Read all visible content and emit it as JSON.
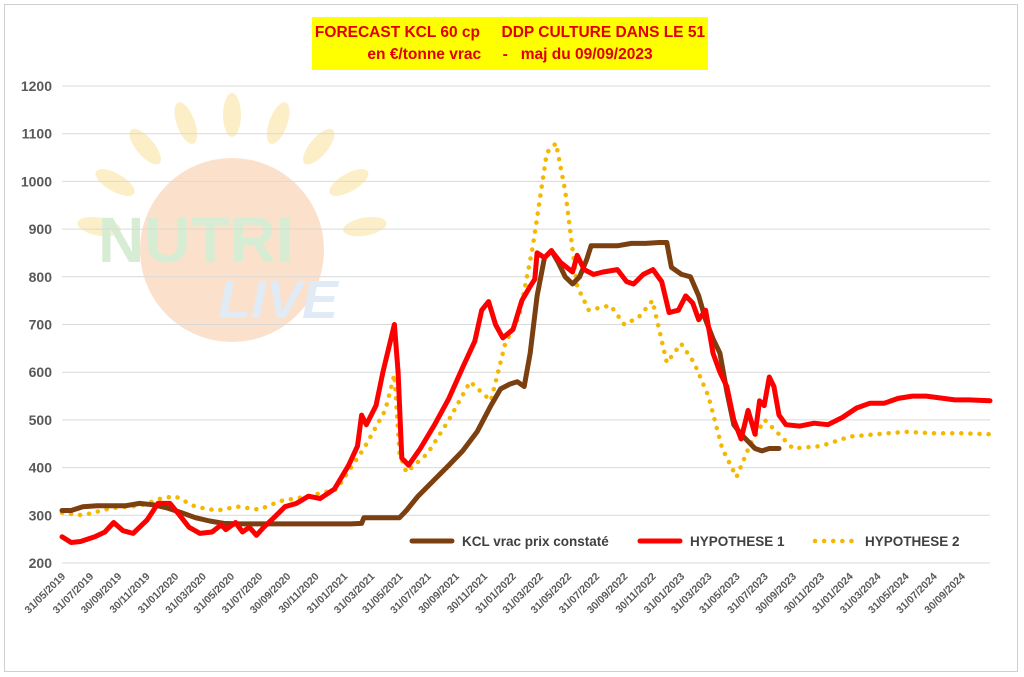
{
  "title": {
    "line1": "FORECAST KCL 60 cp     DDP CULTURE DANS LE 51",
    "line2": "en €/tonne vrac     -   maj du 09/09/2023"
  },
  "watermark": {
    "word1": "NUTRI",
    "word2": "LIVE"
  },
  "colors": {
    "kcl": "#7b3f10",
    "h1": "#ff0000",
    "h2": "#f5b800",
    "grid": "#d9d9d9",
    "title_bg": "#ffff00",
    "title_fg": "#e00000"
  },
  "chart_data": {
    "type": "line",
    "title": "FORECAST KCL 60 cp     DDP CULTURE DANS LE 51 en €/tonne vrac - maj du 09/09/2023",
    "xlabel": "",
    "ylabel": "",
    "ylim": [
      200,
      1200
    ],
    "yticks": [
      200,
      300,
      400,
      500,
      600,
      700,
      800,
      900,
      1000,
      1100,
      1200
    ],
    "xlim": [
      "2019-05-31",
      "2024-11-30"
    ],
    "grid": true,
    "legend_position": "bottom-right",
    "xticks": [
      "31/05/2019",
      "31/07/2019",
      "30/09/2019",
      "30/11/2019",
      "31/01/2020",
      "31/03/2020",
      "31/05/2020",
      "31/07/2020",
      "30/09/2020",
      "30/11/2020",
      "31/01/2021",
      "31/03/2021",
      "31/05/2021",
      "31/07/2021",
      "30/09/2021",
      "30/11/2021",
      "31/01/2022",
      "31/03/2022",
      "31/05/2022",
      "31/07/2022",
      "30/09/2022",
      "30/11/2022",
      "31/01/2023",
      "31/03/2023",
      "31/05/2023",
      "31/07/2023",
      "30/09/2023",
      "30/11/2023",
      "31/01/2024",
      "31/03/2024",
      "31/05/2024",
      "31/07/2024",
      "30/09/2024"
    ],
    "series": [
      {
        "name": "KCL vrac prix constaté",
        "style": "solid-thick",
        "points": [
          [
            "2019-05-31",
            310
          ],
          [
            "2019-06-20",
            310
          ],
          [
            "2019-07-15",
            318
          ],
          [
            "2019-08-15",
            320
          ],
          [
            "2019-10-15",
            320
          ],
          [
            "2019-11-15",
            325
          ],
          [
            "2019-12-15",
            322
          ],
          [
            "2020-01-15",
            315
          ],
          [
            "2020-02-15",
            305
          ],
          [
            "2020-03-15",
            295
          ],
          [
            "2020-04-15",
            288
          ],
          [
            "2020-05-15",
            283
          ],
          [
            "2020-06-15",
            282
          ],
          [
            "2020-08-15",
            282
          ],
          [
            "2020-10-15",
            282
          ],
          [
            "2020-12-15",
            282
          ],
          [
            "2021-02-15",
            282
          ],
          [
            "2021-03-10",
            283
          ],
          [
            "2021-03-15",
            295
          ],
          [
            "2021-05-15",
            295
          ],
          [
            "2021-05-31",
            295
          ],
          [
            "2021-06-15",
            310
          ],
          [
            "2021-07-10",
            340
          ],
          [
            "2021-08-15",
            375
          ],
          [
            "2021-09-15",
            405
          ],
          [
            "2021-10-15",
            435
          ],
          [
            "2021-11-15",
            475
          ],
          [
            "2021-12-15",
            530
          ],
          [
            "2022-01-05",
            565
          ],
          [
            "2022-01-25",
            575
          ],
          [
            "2022-02-10",
            580
          ],
          [
            "2022-02-25",
            570
          ],
          [
            "2022-03-10",
            640
          ],
          [
            "2022-03-25",
            760
          ],
          [
            "2022-04-10",
            840
          ],
          [
            "2022-04-25",
            855
          ],
          [
            "2022-05-10",
            830
          ],
          [
            "2022-05-25",
            800
          ],
          [
            "2022-06-10",
            785
          ],
          [
            "2022-06-25",
            800
          ],
          [
            "2022-07-10",
            835
          ],
          [
            "2022-07-20",
            865
          ],
          [
            "2022-08-15",
            865
          ],
          [
            "2022-09-15",
            865
          ],
          [
            "2022-10-15",
            870
          ],
          [
            "2022-11-15",
            870
          ],
          [
            "2022-12-15",
            872
          ],
          [
            "2022-12-31",
            872
          ],
          [
            "2023-01-10",
            820
          ],
          [
            "2023-02-01",
            805
          ],
          [
            "2023-02-20",
            800
          ],
          [
            "2023-03-10",
            760
          ],
          [
            "2023-03-25",
            710
          ],
          [
            "2023-04-10",
            670
          ],
          [
            "2023-04-25",
            640
          ],
          [
            "2023-05-10",
            560
          ],
          [
            "2023-05-25",
            490
          ],
          [
            "2023-06-10",
            470
          ],
          [
            "2023-06-25",
            455
          ],
          [
            "2023-07-10",
            440
          ],
          [
            "2023-07-25",
            435
          ],
          [
            "2023-08-10",
            440
          ],
          [
            "2023-08-31",
            440
          ]
        ]
      },
      {
        "name": "HYPOTHESE 1",
        "style": "solid-thick",
        "points": [
          [
            "2019-05-31",
            255
          ],
          [
            "2019-06-20",
            243
          ],
          [
            "2019-07-10",
            245
          ],
          [
            "2019-08-10",
            255
          ],
          [
            "2019-09-01",
            265
          ],
          [
            "2019-09-20",
            285
          ],
          [
            "2019-10-10",
            268
          ],
          [
            "2019-11-01",
            262
          ],
          [
            "2019-12-01",
            290
          ],
          [
            "2019-12-25",
            325
          ],
          [
            "2020-01-20",
            325
          ],
          [
            "2020-02-10",
            300
          ],
          [
            "2020-03-01",
            275
          ],
          [
            "2020-03-25",
            262
          ],
          [
            "2020-04-20",
            265
          ],
          [
            "2020-05-10",
            280
          ],
          [
            "2020-05-20",
            270
          ],
          [
            "2020-06-10",
            285
          ],
          [
            "2020-06-25",
            265
          ],
          [
            "2020-07-10",
            275
          ],
          [
            "2020-07-25",
            258
          ],
          [
            "2020-08-10",
            275
          ],
          [
            "2020-09-01",
            295
          ],
          [
            "2020-09-25",
            318
          ],
          [
            "2020-10-20",
            325
          ],
          [
            "2020-11-15",
            340
          ],
          [
            "2020-12-10",
            335
          ],
          [
            "2021-01-10",
            355
          ],
          [
            "2021-02-10",
            405
          ],
          [
            "2021-03-01",
            445
          ],
          [
            "2021-03-10",
            510
          ],
          [
            "2021-03-20",
            490
          ],
          [
            "2021-04-10",
            530
          ],
          [
            "2021-04-25",
            600
          ],
          [
            "2021-05-10",
            660
          ],
          [
            "2021-05-20",
            700
          ],
          [
            "2021-05-28",
            600
          ],
          [
            "2021-06-05",
            420
          ],
          [
            "2021-06-20",
            405
          ],
          [
            "2021-07-15",
            440
          ],
          [
            "2021-08-15",
            490
          ],
          [
            "2021-09-15",
            545
          ],
          [
            "2021-10-15",
            610
          ],
          [
            "2021-11-10",
            665
          ],
          [
            "2021-11-25",
            730
          ],
          [
            "2021-12-10",
            748
          ],
          [
            "2021-12-25",
            700
          ],
          [
            "2022-01-10",
            672
          ],
          [
            "2022-02-01",
            690
          ],
          [
            "2022-02-20",
            750
          ],
          [
            "2022-03-10",
            780
          ],
          [
            "2022-03-20",
            795
          ],
          [
            "2022-03-25",
            850
          ],
          [
            "2022-04-10",
            840
          ],
          [
            "2022-04-25",
            855
          ],
          [
            "2022-05-15",
            830
          ],
          [
            "2022-06-10",
            810
          ],
          [
            "2022-06-20",
            845
          ],
          [
            "2022-07-05",
            815
          ],
          [
            "2022-07-25",
            805
          ],
          [
            "2022-08-15",
            810
          ],
          [
            "2022-09-15",
            815
          ],
          [
            "2022-10-05",
            790
          ],
          [
            "2022-10-20",
            785
          ],
          [
            "2022-11-10",
            805
          ],
          [
            "2022-12-01",
            815
          ],
          [
            "2022-12-20",
            790
          ],
          [
            "2023-01-05",
            725
          ],
          [
            "2023-01-25",
            730
          ],
          [
            "2023-02-10",
            760
          ],
          [
            "2023-02-25",
            745
          ],
          [
            "2023-03-10",
            710
          ],
          [
            "2023-03-25",
            730
          ],
          [
            "2023-04-10",
            640
          ],
          [
            "2023-04-25",
            600
          ],
          [
            "2023-05-10",
            570
          ],
          [
            "2023-05-25",
            500
          ],
          [
            "2023-06-10",
            460
          ],
          [
            "2023-06-25",
            520
          ],
          [
            "2023-07-10",
            470
          ],
          [
            "2023-07-20",
            540
          ],
          [
            "2023-07-30",
            530
          ],
          [
            "2023-08-10",
            590
          ],
          [
            "2023-08-20",
            570
          ],
          [
            "2023-08-31",
            510
          ],
          [
            "2023-09-15",
            490
          ],
          [
            "2023-10-15",
            487
          ],
          [
            "2023-11-15",
            493
          ],
          [
            "2023-12-15",
            490
          ],
          [
            "2024-01-15",
            505
          ],
          [
            "2024-02-15",
            525
          ],
          [
            "2024-03-15",
            535
          ],
          [
            "2024-04-15",
            535
          ],
          [
            "2024-05-15",
            545
          ],
          [
            "2024-06-15",
            550
          ],
          [
            "2024-07-15",
            550
          ],
          [
            "2024-08-15",
            546
          ],
          [
            "2024-09-15",
            542
          ],
          [
            "2024-10-15",
            542
          ],
          [
            "2024-11-30",
            540
          ]
        ]
      },
      {
        "name": "HYPOTHESE 2",
        "style": "dotted",
        "points": [
          [
            "2019-05-31",
            305
          ],
          [
            "2019-07-15",
            300
          ],
          [
            "2019-09-15",
            315
          ],
          [
            "2019-11-15",
            320
          ],
          [
            "2019-12-31",
            335
          ],
          [
            "2020-01-31",
            340
          ],
          [
            "2020-03-15",
            318
          ],
          [
            "2020-04-30",
            310
          ],
          [
            "2020-06-15",
            318
          ],
          [
            "2020-07-31",
            312
          ],
          [
            "2020-09-15",
            330
          ],
          [
            "2020-11-15",
            340
          ],
          [
            "2021-01-15",
            355
          ],
          [
            "2021-03-15",
            440
          ],
          [
            "2021-04-30",
            520
          ],
          [
            "2021-05-20",
            595
          ],
          [
            "2021-05-31",
            430
          ],
          [
            "2021-06-15",
            390
          ],
          [
            "2021-07-31",
            430
          ],
          [
            "2021-09-15",
            500
          ],
          [
            "2021-10-31",
            580
          ],
          [
            "2021-12-15",
            540
          ],
          [
            "2022-01-15",
            660
          ],
          [
            "2022-02-15",
            720
          ],
          [
            "2022-03-15",
            860
          ],
          [
            "2022-04-15",
            1060
          ],
          [
            "2022-05-05",
            1080
          ],
          [
            "2022-05-25",
            980
          ],
          [
            "2022-06-20",
            780
          ],
          [
            "2022-07-15",
            730
          ],
          [
            "2022-08-31",
            740
          ],
          [
            "2022-09-30",
            700
          ],
          [
            "2022-10-31",
            715
          ],
          [
            "2022-11-30",
            750
          ],
          [
            "2022-12-31",
            620
          ],
          [
            "2023-01-31",
            660
          ],
          [
            "2023-02-28",
            620
          ],
          [
            "2023-03-31",
            550
          ],
          [
            "2023-04-30",
            440
          ],
          [
            "2023-05-31",
            380
          ],
          [
            "2023-06-30",
            450
          ],
          [
            "2023-07-31",
            500
          ],
          [
            "2023-08-31",
            470
          ],
          [
            "2023-09-30",
            440
          ],
          [
            "2023-11-30",
            445
          ],
          [
            "2024-01-31",
            465
          ],
          [
            "2024-03-31",
            470
          ],
          [
            "2024-05-31",
            475
          ],
          [
            "2024-07-31",
            472
          ],
          [
            "2024-09-30",
            472
          ],
          [
            "2024-11-30",
            470
          ]
        ]
      }
    ]
  }
}
